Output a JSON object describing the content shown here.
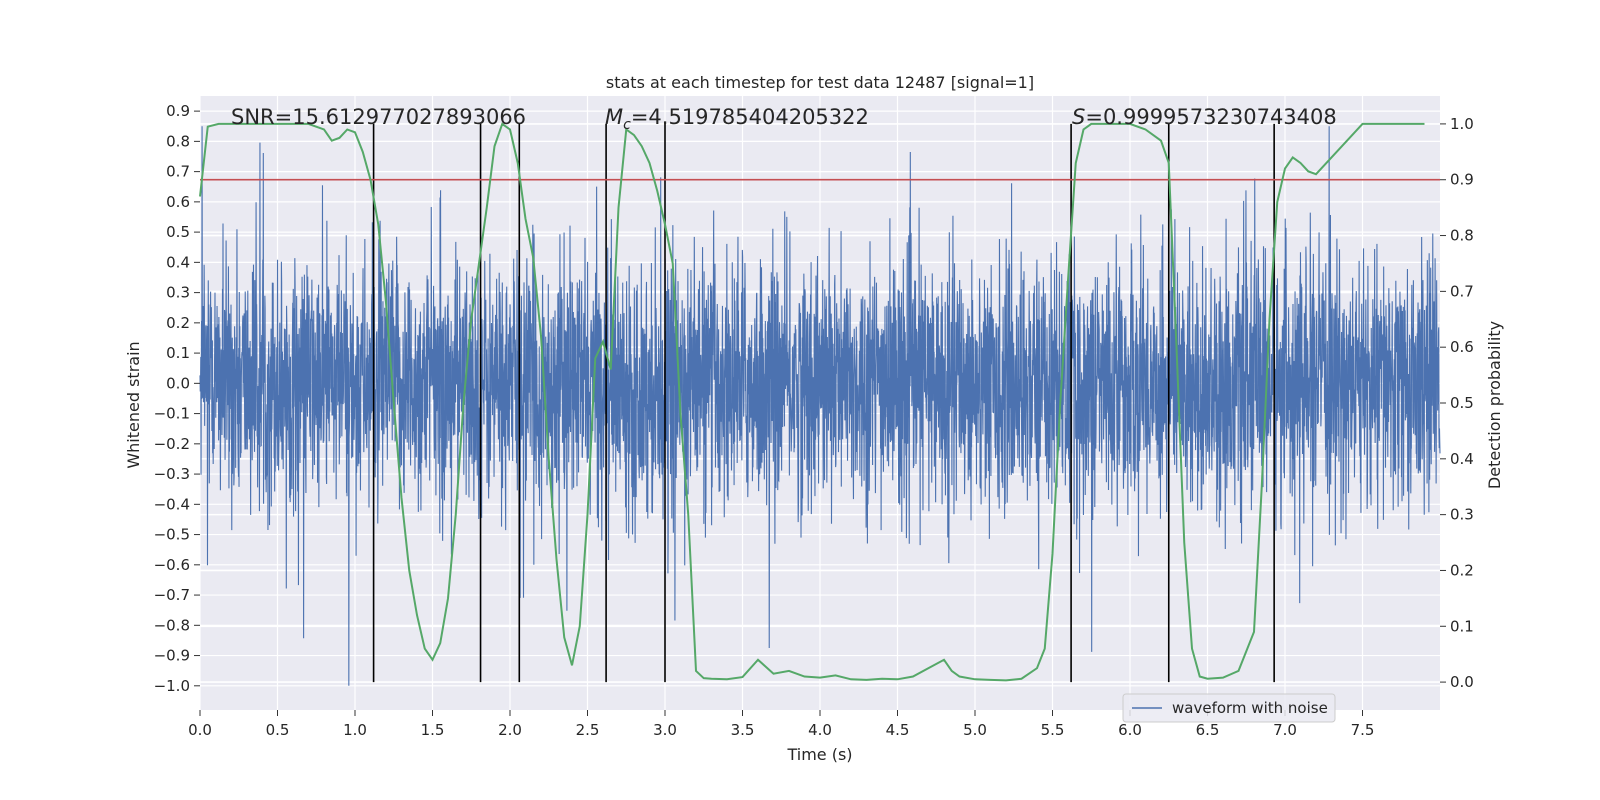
{
  "chart_data": {
    "type": "line",
    "title": "stats at each timestep for test data 12487 [signal=1]",
    "xlabel": "Time (s)",
    "ylabel": "Whitened strain",
    "ylabel_right": "Detection probability",
    "xlim": [
      0.0,
      8.0
    ],
    "ylim": [
      -1.08,
      0.95
    ],
    "ylim_right": [
      -0.05,
      1.05
    ],
    "x_ticks": [
      "0.0",
      "0.5",
      "1.0",
      "1.5",
      "2.0",
      "2.5",
      "3.0",
      "3.5",
      "4.0",
      "4.5",
      "5.0",
      "5.5",
      "6.0",
      "6.5",
      "7.0",
      "7.5"
    ],
    "y_ticks": [
      "0.9",
      "0.8",
      "0.7",
      "0.6",
      "0.5",
      "0.4",
      "0.3",
      "0.2",
      "0.1",
      "0.0",
      "−0.1",
      "−0.2",
      "−0.3",
      "−0.4",
      "−0.5",
      "−0.6",
      "−0.7",
      "−0.8",
      "−0.9",
      "−1.0"
    ],
    "y_right_ticks": [
      "1.0",
      "0.9",
      "0.8",
      "0.7",
      "0.6",
      "0.5",
      "0.4",
      "0.3",
      "0.2",
      "0.1",
      "0.0"
    ],
    "annotations": {
      "snr": "SNR=15.612977027893066",
      "mc_symbol": "M",
      "mc_sub": "c",
      "mc_value": "=4.519785404205322",
      "s_symbol": "S",
      "s_value": "=0.9999573230743408"
    },
    "legend": {
      "label": "waveform with noise",
      "position": "lower-right"
    },
    "threshold": {
      "value": 0.9,
      "color": "#c44e52"
    },
    "vertical_lines_x": [
      1.12,
      1.81,
      2.06,
      2.62,
      3.0,
      5.62,
      6.25,
      6.93
    ],
    "waveform": {
      "name": "waveform with noise",
      "color": "#4c72b0",
      "duration": 8.0,
      "typical_range": [
        -0.3,
        0.3
      ],
      "peak_min": -1.0,
      "peak_max": 0.85
    },
    "series": [
      {
        "name": "",
        "color": "#55a868",
        "axis": "right",
        "x": [
          0.0,
          0.05,
          0.12,
          0.25,
          0.4,
          0.55,
          0.7,
          0.8,
          0.85,
          0.9,
          0.95,
          1.0,
          1.05,
          1.1,
          1.15,
          1.2,
          1.25,
          1.3,
          1.35,
          1.4,
          1.45,
          1.5,
          1.55,
          1.6,
          1.65,
          1.7,
          1.75,
          1.8,
          1.85,
          1.9,
          1.95,
          2.0,
          2.05,
          2.1,
          2.15,
          2.2,
          2.25,
          2.3,
          2.35,
          2.4,
          2.45,
          2.5,
          2.55,
          2.6,
          2.65,
          2.7,
          2.75,
          2.8,
          2.85,
          2.9,
          2.95,
          3.0,
          3.05,
          3.1,
          3.15,
          3.2,
          3.25,
          3.3,
          3.4,
          3.5,
          3.6,
          3.7,
          3.8,
          3.9,
          4.0,
          4.1,
          4.2,
          4.3,
          4.4,
          4.5,
          4.6,
          4.7,
          4.8,
          4.85,
          4.9,
          5.0,
          5.1,
          5.2,
          5.3,
          5.4,
          5.45,
          5.5,
          5.55,
          5.6,
          5.65,
          5.7,
          5.75,
          5.8,
          5.9,
          6.0,
          6.1,
          6.2,
          6.25,
          6.3,
          6.35,
          6.4,
          6.45,
          6.5,
          6.6,
          6.7,
          6.8,
          6.85,
          6.9,
          6.95,
          7.0,
          7.05,
          7.1,
          7.15,
          7.2,
          7.3,
          7.4,
          7.5,
          7.6,
          7.7,
          7.9
        ],
        "values": [
          0.87,
          0.995,
          1.0,
          1.0,
          1.0,
          1.0,
          1.0,
          0.99,
          0.97,
          0.975,
          0.99,
          0.985,
          0.95,
          0.9,
          0.82,
          0.68,
          0.5,
          0.33,
          0.2,
          0.12,
          0.06,
          0.04,
          0.07,
          0.15,
          0.3,
          0.5,
          0.65,
          0.75,
          0.85,
          0.96,
          1.0,
          0.99,
          0.93,
          0.83,
          0.76,
          0.62,
          0.4,
          0.22,
          0.08,
          0.03,
          0.1,
          0.3,
          0.58,
          0.61,
          0.56,
          0.85,
          0.99,
          0.98,
          0.96,
          0.93,
          0.88,
          0.82,
          0.75,
          0.48,
          0.3,
          0.02,
          0.007,
          0.006,
          0.005,
          0.009,
          0.04,
          0.015,
          0.02,
          0.01,
          0.008,
          0.012,
          0.005,
          0.004,
          0.006,
          0.005,
          0.01,
          0.025,
          0.04,
          0.02,
          0.01,
          0.005,
          0.004,
          0.003,
          0.006,
          0.025,
          0.06,
          0.23,
          0.5,
          0.72,
          0.93,
          0.99,
          1.0,
          1.0,
          1.0,
          1.0,
          0.99,
          0.97,
          0.93,
          0.6,
          0.25,
          0.06,
          0.01,
          0.006,
          0.008,
          0.02,
          0.09,
          0.35,
          0.65,
          0.86,
          0.92,
          0.94,
          0.93,
          0.915,
          0.91,
          0.94,
          0.97,
          1.0,
          1.0,
          1.0,
          1.0
        ]
      }
    ]
  }
}
